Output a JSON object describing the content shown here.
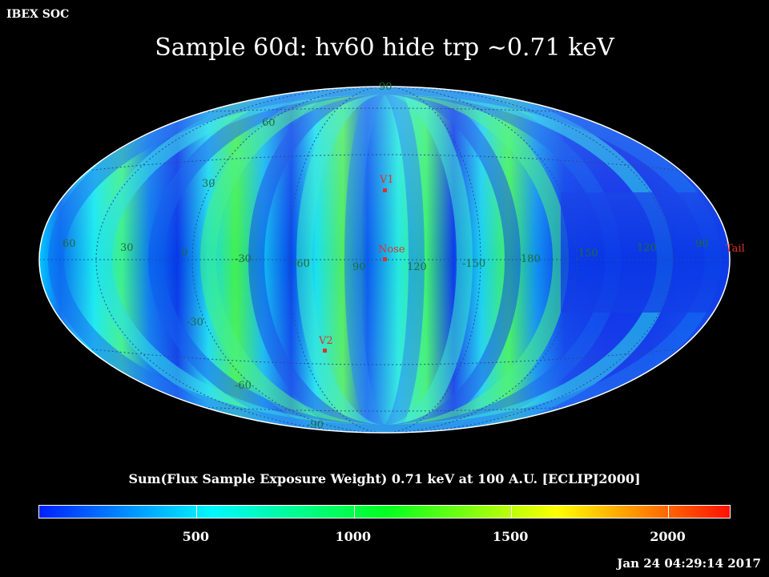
{
  "header": {
    "corner_label": "IBEX SOC",
    "title": "Sample 60d: hv60 hide trp ~0.71 keV"
  },
  "map": {
    "projection": "Mollweide (Aitoff-style all-sky ellipse)",
    "grid_lat_labels_upper": [
      "90",
      "60",
      "30"
    ],
    "grid_lat_labels_lower": [
      "-30",
      "-60",
      "-90"
    ],
    "grid_lon_labels": [
      "60",
      "30",
      "0",
      "-30",
      "-60",
      "90",
      "120",
      "-150",
      "180",
      "150",
      "120",
      "90"
    ],
    "markers": [
      {
        "name": "V1",
        "color": "#e0302a"
      },
      {
        "name": "Nose",
        "color": "#e0302a"
      },
      {
        "name": "V2",
        "color": "#e0302a"
      },
      {
        "name": "Tail",
        "color": "#e0302a"
      }
    ]
  },
  "colorbar": {
    "title": "Sum(Flux Sample Exposure Weight)  0.71 keV at 100 A.U. [ECLIPJ2000]",
    "min": 0,
    "max": 2200,
    "ticks": [
      "500",
      "1000",
      "1500",
      "2000"
    ],
    "tick_values": [
      500,
      1000,
      1500,
      2000
    ],
    "colors": [
      "#0020ff",
      "#00f8ff",
      "#00ff20",
      "#ffff00",
      "#ff1000"
    ]
  },
  "footer": {
    "timestamp": "Jan 24 04:29:14 2017"
  }
}
